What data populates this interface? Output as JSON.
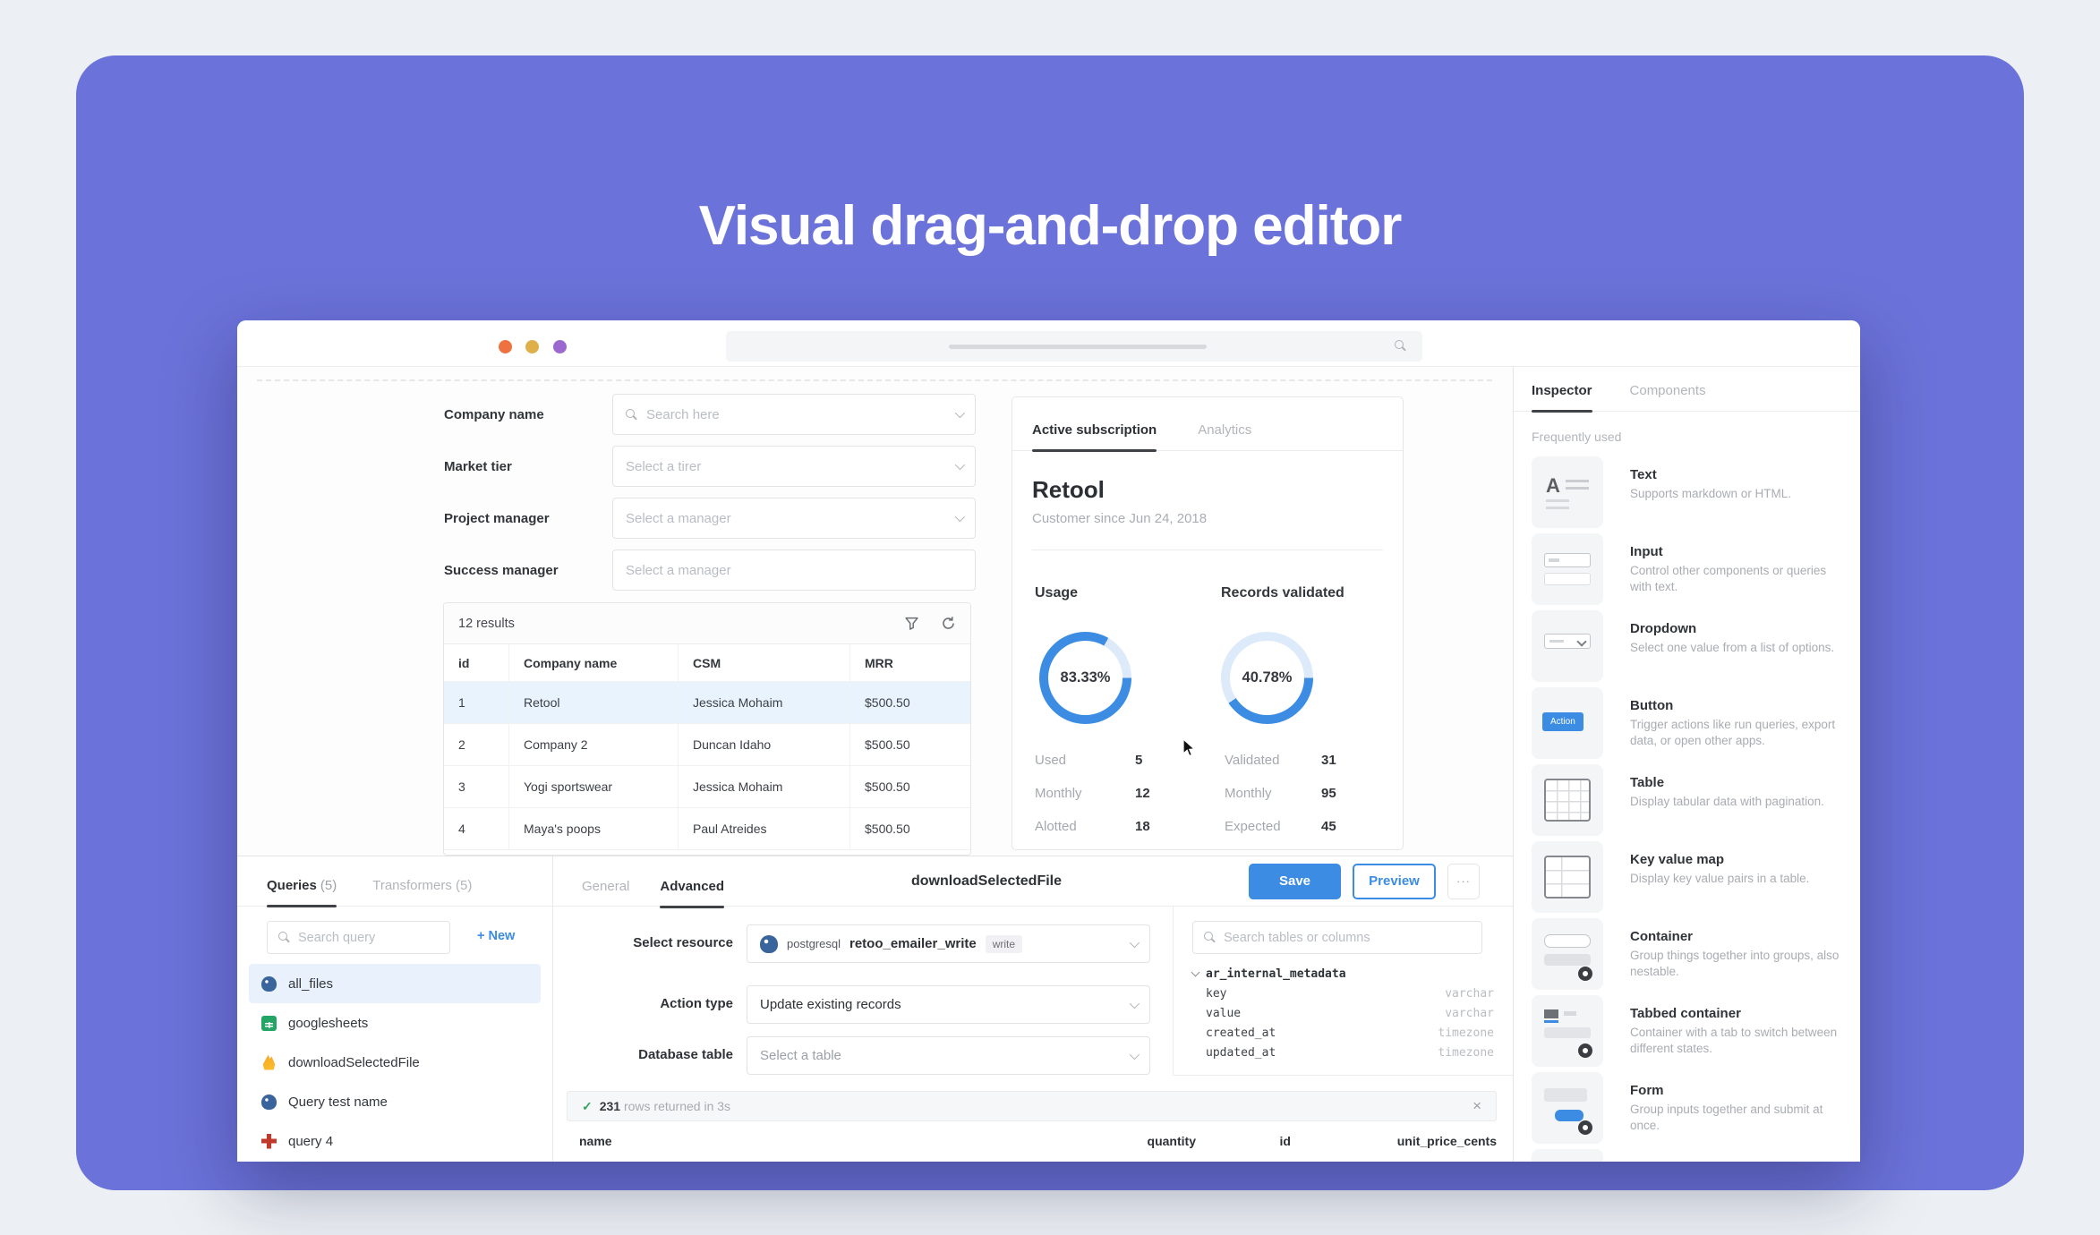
{
  "colors": {
    "page_bg": "#ecf0f4",
    "purple": "#6b72d9",
    "accent": "#3b8ce2",
    "accent_light": "#ddeafa",
    "selected_row": "#e9f3fd",
    "green": "#34a55b",
    "dot_red": "#ee7140",
    "dot_yellow": "#dfb04a",
    "dot_purple": "#9a68cf"
  },
  "hero": {
    "title": "Visual drag-and-drop editor"
  },
  "window": {
    "form": {
      "fields": [
        {
          "label": "Company name",
          "placeholder": "Search here",
          "type": "fr-search"
        },
        {
          "label": "Market tier",
          "placeholder": "Select a tirer",
          "type": "fr-select"
        },
        {
          "label": "Project manager",
          "placeholder": "Select a manager",
          "type": "fr-select"
        },
        {
          "label": "Success manager",
          "placeholder": "Select a manager",
          "type": "fr-plain"
        }
      ]
    },
    "results_table": {
      "summary": "12 results",
      "columns": [
        "id",
        "Company name",
        "CSM",
        "MRR"
      ],
      "rows": [
        [
          "1",
          "Retool",
          "Jessica Mohaim",
          "$500.50"
        ],
        [
          "2",
          "Company 2",
          "Duncan Idaho",
          "$500.50"
        ],
        [
          "3",
          "Yogi sportswear",
          "Jessica Mohaim",
          "$500.50"
        ],
        [
          "4",
          "Maya's poops",
          "Paul Atreides",
          "$500.50"
        ]
      ]
    },
    "customer_card": {
      "tabs": [
        "Active subscription",
        "Analytics"
      ],
      "name": "Retool",
      "since": "Customer since Jun 24, 2018",
      "usage": {
        "label": "Usage",
        "pct": "83.33%",
        "value": 83.33,
        "stats": [
          [
            "Used",
            "5"
          ],
          [
            "Monthly",
            "12"
          ],
          [
            "Alotted",
            "18"
          ]
        ]
      },
      "records": {
        "label": "Records validated",
        "pct": "40.78%",
        "value": 40.78,
        "stats": [
          [
            "Validated",
            "31"
          ],
          [
            "Monthly",
            "95"
          ],
          [
            "Expected",
            "45"
          ]
        ]
      }
    },
    "queries_panel": {
      "tab_queries": "Queries",
      "tab_queries_count": "(5)",
      "tab_transformers": "Transformers (5)",
      "search_placeholder": "Search query",
      "new_label": "+ New",
      "items": [
        {
          "name": "all_files",
          "icon": "postgresql"
        },
        {
          "name": "googlesheets",
          "icon": "googlesheets"
        },
        {
          "name": "downloadSelectedFile",
          "icon": "firebase"
        },
        {
          "name": "Query test name",
          "icon": "postgresql"
        },
        {
          "name": "query 4",
          "icon": "redquery"
        }
      ]
    },
    "query_editor": {
      "tabs": [
        "General",
        "Advanced"
      ],
      "title": "downloadSelectedFile",
      "save_label": "Save",
      "preview_label": "Preview",
      "more_label": "···",
      "resource": {
        "label": "Select resource",
        "vendor": "postgresql",
        "name": "retoo_emailer_write",
        "badge": "write"
      },
      "action_type": {
        "label": "Action type",
        "value": "Update existing records"
      },
      "database_table": {
        "label": "Database table",
        "placeholder": "Select a table"
      },
      "schema": {
        "search_placeholder": "Search tables or columns",
        "table": "ar_internal_metadata",
        "columns": [
          [
            "key",
            "varchar"
          ],
          [
            "value",
            "varchar"
          ],
          [
            "created_at",
            "timezone"
          ],
          [
            "updated_at",
            "timezone"
          ]
        ]
      },
      "results": {
        "count": "231",
        "text": "rows returned in 3s",
        "close": "×",
        "check": "✓",
        "columns": [
          "name",
          "quantity",
          "id",
          "unit_price_cents"
        ]
      }
    },
    "inspector": {
      "tabs": [
        "Inspector",
        "Components"
      ],
      "section": "Frequently used",
      "items": [
        {
          "name": "Text",
          "desc": "Supports markdown or HTML.",
          "icon": "text",
          "icon_label": ""
        },
        {
          "name": "Input",
          "desc": "Control other components or queries with text.",
          "icon": "input",
          "icon_label": ""
        },
        {
          "name": "Dropdown",
          "desc": "Select one value from a list of options.",
          "icon": "dropdown",
          "icon_label": ""
        },
        {
          "name": "Button",
          "desc": "Trigger actions like run queries, export data, or open other apps.",
          "icon": "button",
          "icon_label": "Action"
        },
        {
          "name": "Table",
          "desc": "Display tabular data with pagination.",
          "icon": "table",
          "icon_label": ""
        },
        {
          "name": "Key value map",
          "desc": "Display key value pairs in a table.",
          "icon": "kvm",
          "icon_label": ""
        },
        {
          "name": "Container",
          "desc": "Group things together into groups, also nestable.",
          "icon": "container",
          "icon_label": ""
        },
        {
          "name": "Tabbed container",
          "desc": "Container with a tab to switch between different states.",
          "icon": "tabbed",
          "icon_label": ""
        },
        {
          "name": "Form",
          "desc": "Group inputs together and submit at once.",
          "icon": "form",
          "icon_label": ""
        }
      ]
    }
  }
}
